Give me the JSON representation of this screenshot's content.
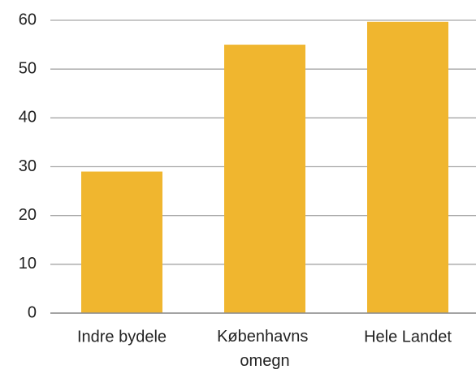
{
  "chart_data": {
    "type": "bar",
    "categories": [
      "Indre bydele",
      "Københavns omegn",
      "Hele Landet"
    ],
    "values": [
      29,
      55,
      59.7
    ],
    "color": "#f0b62f",
    "ylim": [
      0,
      60
    ],
    "yticks": [
      0,
      10,
      20,
      30,
      40,
      50,
      60
    ],
    "grid": true
  }
}
